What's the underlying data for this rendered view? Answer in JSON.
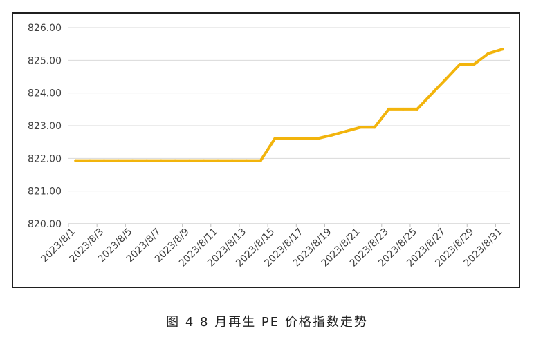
{
  "caption": "图 4  8 月再生 PE 价格指数走势",
  "chart_data": {
    "type": "line",
    "title": "",
    "xlabel": "",
    "ylabel": "",
    "ylim": [
      820,
      826
    ],
    "yticks": [
      "820.00",
      "821.00",
      "822.00",
      "823.00",
      "824.00",
      "825.00",
      "826.00"
    ],
    "grid": true,
    "legend": "none",
    "colors": {
      "line": "#F2B40C",
      "grid": "#D9D9D9",
      "axis": "#BFBFBF"
    },
    "x": [
      "2023/8/1",
      "2023/8/2",
      "2023/8/3",
      "2023/8/4",
      "2023/8/5",
      "2023/8/6",
      "2023/8/7",
      "2023/8/8",
      "2023/8/9",
      "2023/8/10",
      "2023/8/11",
      "2023/8/12",
      "2023/8/13",
      "2023/8/14",
      "2023/8/15",
      "2023/8/16",
      "2023/8/17",
      "2023/8/18",
      "2023/8/19",
      "2023/8/20",
      "2023/8/21",
      "2023/8/22",
      "2023/8/23",
      "2023/8/24",
      "2023/8/25",
      "2023/8/26",
      "2023/8/27",
      "2023/8/28",
      "2023/8/29",
      "2023/8/30",
      "2023/8/31"
    ],
    "x_tick_labels": [
      "2023/8/1",
      "2023/8/3",
      "2023/8/5",
      "2023/8/7",
      "2023/8/9",
      "2023/8/11",
      "2023/8/13",
      "2023/8/15",
      "2023/8/17",
      "2023/8/19",
      "2023/8/21",
      "2023/8/23",
      "2023/8/25",
      "2023/8/27",
      "2023/8/29",
      "2023/8/31"
    ],
    "series": [
      {
        "values": [
          821.93,
          821.93,
          821.93,
          821.93,
          821.93,
          821.93,
          821.93,
          821.93,
          821.93,
          821.93,
          821.93,
          821.93,
          821.93,
          821.93,
          822.61,
          822.61,
          822.61,
          822.61,
          822.71,
          822.83,
          822.95,
          822.95,
          823.51,
          823.51,
          823.51,
          823.97,
          824.42,
          824.88,
          824.88,
          825.21,
          825.34
        ]
      }
    ]
  }
}
